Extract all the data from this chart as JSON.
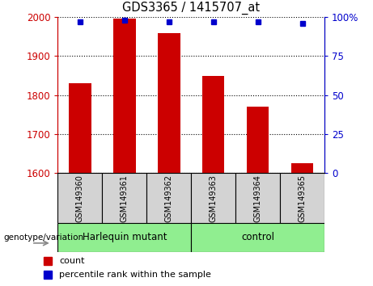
{
  "title": "GDS3365 / 1415707_at",
  "samples": [
    "GSM149360",
    "GSM149361",
    "GSM149362",
    "GSM149363",
    "GSM149364",
    "GSM149365"
  ],
  "count_values": [
    1830,
    1997,
    1960,
    1850,
    1770,
    1625
  ],
  "percentile_values": [
    97,
    98,
    97,
    97,
    97,
    96
  ],
  "ylim_left": [
    1600,
    2000
  ],
  "ylim_right": [
    0,
    100
  ],
  "yticks_left": [
    1600,
    1700,
    1800,
    1900,
    2000
  ],
  "yticks_right": [
    0,
    25,
    50,
    75,
    100
  ],
  "ytick_labels_right": [
    "0",
    "25",
    "50",
    "75",
    "100%"
  ],
  "bar_color": "#cc0000",
  "dot_color": "#0000cc",
  "harlequin_label": "Harlequin mutant",
  "control_label": "control",
  "group_label_prefix": "genotype/variation",
  "legend_count_label": "count",
  "legend_percentile_label": "percentile rank within the sample",
  "tick_color_left": "#cc0000",
  "tick_color_right": "#0000cc",
  "group_color": "#90ee90",
  "sample_box_color": "#d3d3d3",
  "bar_width": 0.5
}
